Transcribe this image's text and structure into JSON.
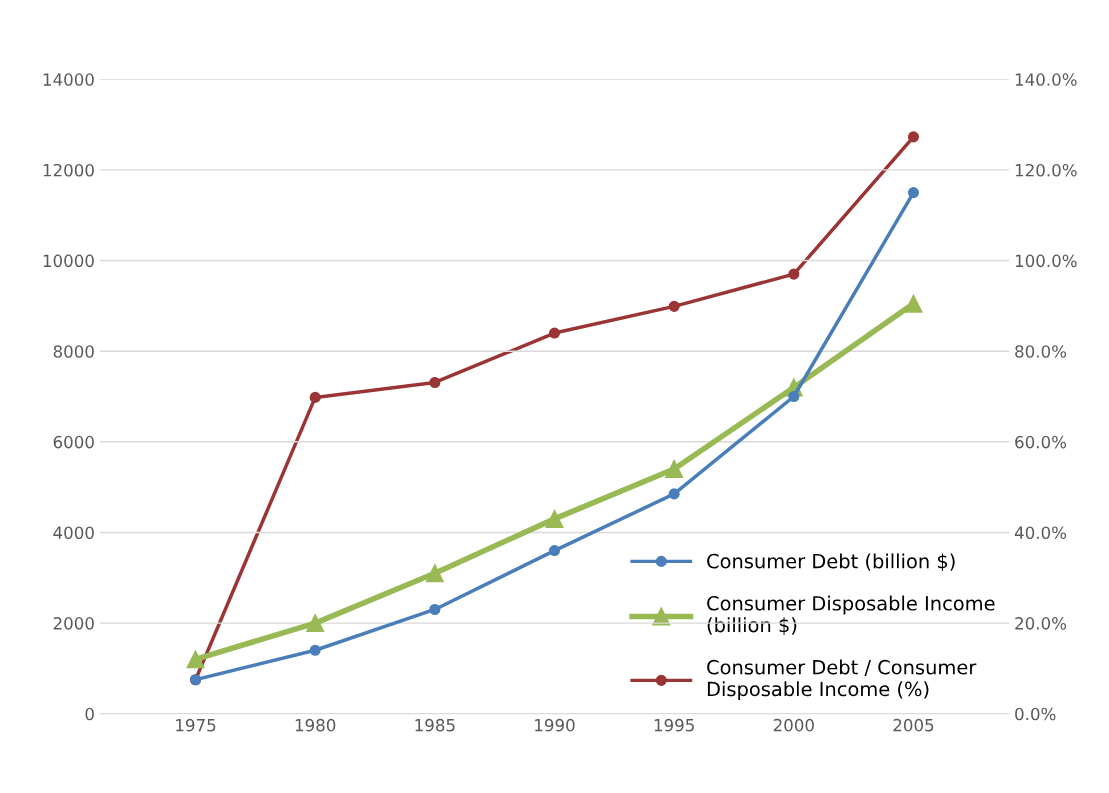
{
  "chart_data": {
    "type": "line",
    "x": [
      1975,
      1980,
      1985,
      1990,
      1995,
      2000,
      2005
    ],
    "xlim": [
      1971,
      2009
    ],
    "xticks": [
      1975,
      1980,
      1985,
      1990,
      1995,
      2000,
      2005
    ],
    "ylim": [
      0,
      14000
    ],
    "yticks": [
      0,
      2000,
      4000,
      6000,
      8000,
      10000,
      12000,
      14000
    ],
    "y2lim": [
      0,
      140
    ],
    "y2ticks": [
      {
        "value": 0,
        "label": "0.0%"
      },
      {
        "value": 20,
        "label": "20.0%"
      },
      {
        "value": 40,
        "label": "40.0%"
      },
      {
        "value": 60,
        "label": "60.0%"
      },
      {
        "value": 80,
        "label": "80.0%"
      },
      {
        "value": 100,
        "label": "100.0%"
      },
      {
        "value": 120,
        "label": "120.0%"
      },
      {
        "value": 140,
        "label": "140.0%"
      }
    ],
    "grid": "y",
    "legend": "bottom right",
    "series": [
      {
        "name": "Consumer Debt (billion $)",
        "color": "#4a7ebb",
        "marker": "circle",
        "values": [
          750,
          1400,
          2300,
          3600,
          4850,
          7000,
          11500
        ]
      },
      {
        "name": "Consumer Disposable Income (billion $)",
        "color": "#98b954",
        "marker": "triangle",
        "values": [
          1200,
          2000,
          3100,
          4300,
          5400,
          7200,
          9050
        ]
      },
      {
        "name": "Consumer Debt / Consumer Disposable Income (%)",
        "color": "#9b3535",
        "marker": "circle",
        "axis": "y2",
        "values": [
          7.5,
          69.8,
          73.1,
          84.0,
          89.9,
          97.0,
          127.3
        ]
      }
    ]
  }
}
